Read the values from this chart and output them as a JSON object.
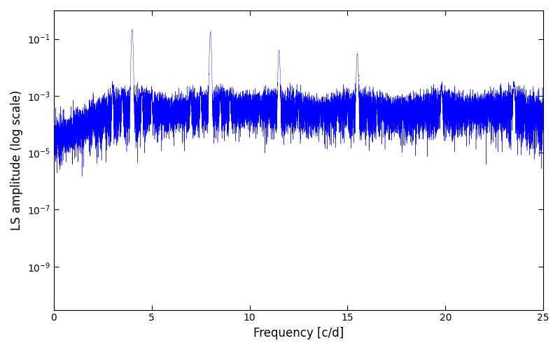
{
  "title": "",
  "xlabel": "Frequency [c/d]",
  "ylabel": "LS amplitude (log scale)",
  "line_color": "blue",
  "freq_min": 0,
  "freq_max": 25,
  "ylim_min": 3e-11,
  "ylim_max": 1.0,
  "yticks": [
    1e-09,
    1e-07,
    1e-05,
    0.001,
    0.1
  ],
  "xticks": [
    0,
    5,
    10,
    15,
    20,
    25
  ],
  "figsize": [
    8.0,
    5.0
  ],
  "dpi": 100,
  "background_color": "#ffffff",
  "peak_freqs": [
    4.0,
    8.0,
    11.5,
    15.5,
    19.8,
    23.5
  ],
  "peak_amps": [
    0.22,
    0.18,
    0.04,
    0.03,
    0.0015,
    0.0025
  ],
  "noise_base": 5e-06,
  "n_freqs": 15000,
  "seed": 137
}
